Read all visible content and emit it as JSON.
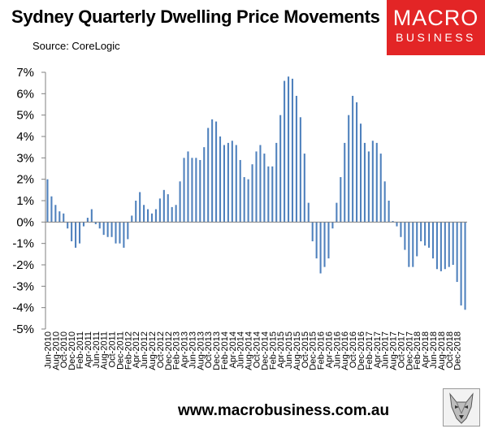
{
  "header": {
    "title": "Sydney Quarterly Dwelling Price Movements",
    "source": "Source: CoreLogic"
  },
  "logo": {
    "line1": "MACRO",
    "line2": "BUSINESS"
  },
  "footer": {
    "url": "www.macrobusiness.com.au"
  },
  "colors": {
    "bar": "#4f81bd",
    "logo_bg": "#e32526",
    "axis": "#808080"
  },
  "icons": {
    "footer_icon": "wolf-icon"
  },
  "chart_data": {
    "type": "bar",
    "title": "Sydney Quarterly Dwelling Price Movements",
    "xlabel": "",
    "ylabel": "",
    "ylim": [
      -5,
      7
    ],
    "y_ticks": [
      -5,
      -4,
      -3,
      -2,
      -1,
      0,
      1,
      2,
      3,
      4,
      5,
      6,
      7
    ],
    "y_tick_labels": [
      "-5%",
      "-4%",
      "-3%",
      "-2%",
      "-1%",
      "0%",
      "1%",
      "2%",
      "3%",
      "4%",
      "5%",
      "6%",
      "7%"
    ],
    "x_tick_labels": [
      "Jun-2010",
      "Aug-2010",
      "Oct-2010",
      "Dec-2010",
      "Feb-2011",
      "Apr-2011",
      "Jun-2011",
      "Aug-2011",
      "Oct-2011",
      "Dec-2011",
      "Feb-2012",
      "Apr-2012",
      "Jun-2012",
      "Aug-2012",
      "Oct-2012",
      "Dec-2012",
      "Feb-2013",
      "Apr-2013",
      "Jun-2013",
      "Aug-2013",
      "Oct-2013",
      "Dec-2013",
      "Feb-2014",
      "Apr-2014",
      "Jun-2014",
      "Aug-2014",
      "Oct-2014",
      "Dec-2014",
      "Feb-2015",
      "Apr-2015",
      "Jun-2015",
      "Aug-2015",
      "Oct-2015",
      "Dec-2015",
      "Feb-2016",
      "Apr-2016",
      "Jun-2016",
      "Aug-2016",
      "Oct-2016",
      "Dec-2016",
      "Feb-2017",
      "Apr-2017",
      "Jun-2017",
      "Aug-2017",
      "Oct-2017",
      "Dec-2017",
      "Feb-2018",
      "Apr-2018",
      "Jun-2018",
      "Aug-2018",
      "Oct-2018",
      "Dec-2018"
    ],
    "grid": false,
    "series": [
      {
        "values": [
          2.0,
          1.2,
          0.8,
          0.5,
          0.4,
          -0.3,
          -0.9,
          -1.2,
          -1.0,
          -0.2,
          0.2,
          0.6,
          -0.1,
          -0.3,
          -0.6,
          -0.7,
          -0.7,
          -1.0,
          -1.0,
          -1.2,
          -0.8,
          0.3,
          1.0,
          1.4,
          0.8,
          0.6,
          0.4,
          0.6,
          1.1,
          1.5,
          1.3,
          0.7,
          0.8,
          1.9,
          3.0,
          3.3,
          3.0,
          3.0,
          2.9,
          3.5,
          4.4,
          4.8,
          4.7,
          4.0,
          3.6,
          3.7,
          3.8,
          3.6,
          2.9,
          2.1,
          2.0,
          2.7,
          3.3,
          3.6,
          3.2,
          2.6,
          2.6,
          3.7,
          5.0,
          6.6,
          6.8,
          6.7,
          5.9,
          4.9,
          3.2,
          0.9,
          -0.9,
          -1.7,
          -2.4,
          -2.1,
          -1.7,
          -0.3,
          0.9,
          2.1,
          3.7,
          5.0,
          5.9,
          5.6,
          4.6,
          3.7,
          3.3,
          3.8,
          3.7,
          3.2,
          1.9,
          1.0,
          0.05,
          -0.2,
          -0.7,
          -1.3,
          -2.1,
          -2.1,
          -1.6,
          -0.9,
          -1.1,
          -1.2,
          -1.7,
          -2.2,
          -2.3,
          -2.2,
          -2.1,
          -2.0,
          -2.8,
          -3.9,
          -4.1
        ]
      }
    ]
  }
}
